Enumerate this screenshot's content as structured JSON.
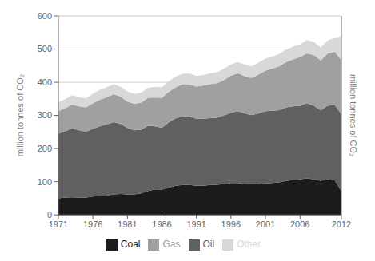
{
  "chart_data": {
    "type": "area",
    "stacked": true,
    "grid": true,
    "legend": "bottom",
    "ylabel": "million tonnes of CO₂",
    "y2label": "million tonnes of CO₂",
    "x": [
      1971,
      1972,
      1973,
      1974,
      1975,
      1976,
      1977,
      1978,
      1979,
      1980,
      1981,
      1982,
      1983,
      1984,
      1985,
      1986,
      1987,
      1988,
      1989,
      1990,
      1991,
      1992,
      1993,
      1994,
      1995,
      1996,
      1997,
      1998,
      1999,
      2000,
      2001,
      2002,
      2003,
      2004,
      2005,
      2006,
      2007,
      2008,
      2009,
      2010,
      2011,
      2012
    ],
    "xlim": [
      1971,
      2012
    ],
    "xticks": [
      1971,
      1976,
      1981,
      1986,
      1991,
      1996,
      2001,
      2006,
      2012
    ],
    "ylim": [
      0,
      600
    ],
    "yticks": [
      0,
      100,
      200,
      300,
      400,
      500,
      600
    ],
    "series": [
      {
        "name": "Coal",
        "color": "#1c1c1c",
        "values": [
          50,
          52,
          53,
          52,
          52,
          55,
          57,
          58,
          62,
          63,
          62,
          62,
          65,
          72,
          77,
          76,
          82,
          88,
          90,
          90,
          88,
          88,
          90,
          91,
          93,
          96,
          96,
          93,
          93,
          93,
          95,
          96,
          98,
          102,
          105,
          107,
          110,
          107,
          103,
          107,
          105,
          72
        ]
      },
      {
        "name": "Oil",
        "color": "#606060",
        "values": [
          195,
          200,
          208,
          203,
          198,
          205,
          210,
          215,
          218,
          212,
          200,
          193,
          192,
          197,
          190,
          187,
          197,
          203,
          207,
          207,
          202,
          202,
          202,
          202,
          207,
          212,
          217,
          213,
          208,
          213,
          218,
          218,
          218,
          222,
          222,
          222,
          227,
          222,
          213,
          222,
          227,
          232
        ]
      },
      {
        "name": "Gas",
        "color": "#a0a0a0",
        "values": [
          68,
          70,
          72,
          72,
          74,
          77,
          80,
          82,
          84,
          82,
          80,
          80,
          82,
          84,
          87,
          90,
          92,
          94,
          97,
          97,
          97,
          100,
          102,
          104,
          107,
          112,
          114,
          112,
          112,
          117,
          122,
          127,
          132,
          137,
          142,
          147,
          150,
          153,
          150,
          157,
          160,
          163
        ]
      },
      {
        "name": "Other",
        "color": "#d8d8d8",
        "values": [
          27,
          27,
          28,
          28,
          28,
          28,
          30,
          30,
          30,
          30,
          30,
          30,
          30,
          30,
          32,
          32,
          32,
          32,
          32,
          32,
          32,
          32,
          33,
          33,
          34,
          34,
          34,
          35,
          35,
          36,
          37,
          37,
          37,
          38,
          38,
          38,
          40,
          40,
          38,
          40,
          42,
          72
        ]
      }
    ]
  }
}
